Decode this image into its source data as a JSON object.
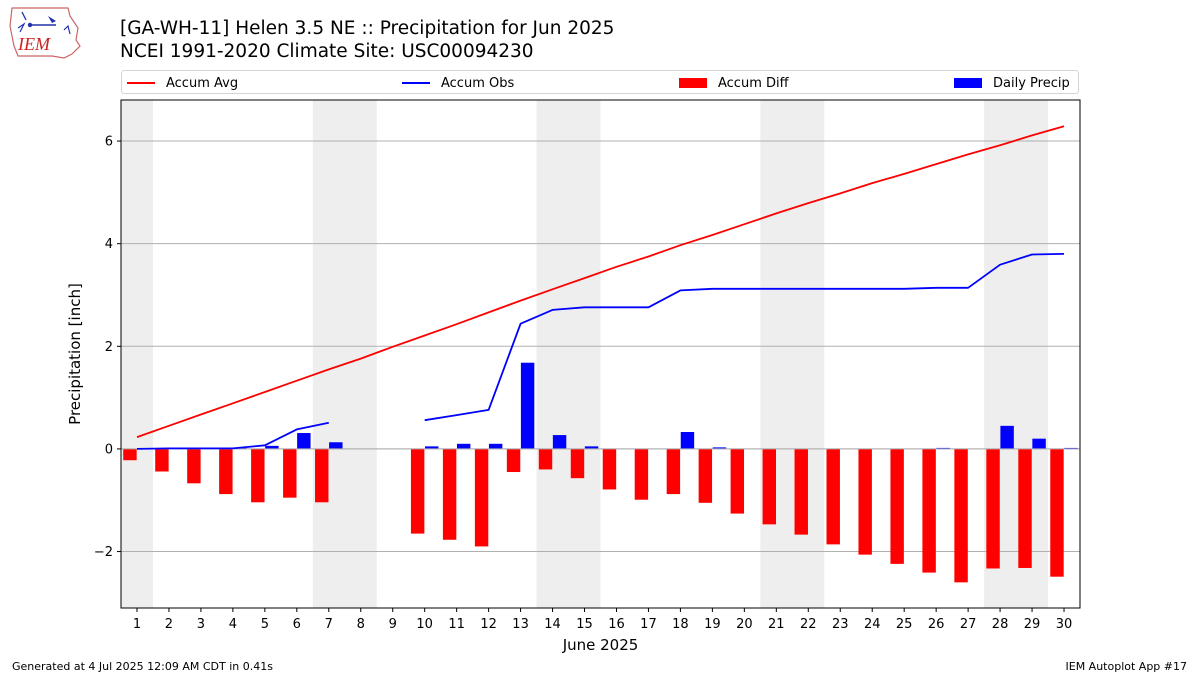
{
  "title_line1": "[GA-WH-11] Helen 3.5 NE :: Precipitation for Jun 2025",
  "title_line2": "NCEI 1991-2020 Climate Site: USC00094230",
  "logo_text": "IEM",
  "footer_left": "Generated at 4 Jul 2025 12:09 AM CDT in 0.41s",
  "footer_right": "IEM Autoplot App #17",
  "chart_data": {
    "type": "bar",
    "xlabel": "June 2025",
    "ylabel": "Precipitation [inch]",
    "xlim": [
      0.5,
      30.5
    ],
    "ylim": [
      -3.1,
      6.8
    ],
    "yticks": [
      -2,
      0,
      2,
      4,
      6
    ],
    "ytick_labels": [
      "−2",
      "0",
      "2",
      "4",
      "6"
    ],
    "xticks": [
      "1",
      "2",
      "3",
      "4",
      "5",
      "6",
      "7",
      "8",
      "9",
      "10",
      "11",
      "12",
      "13",
      "14",
      "15",
      "16",
      "17",
      "18",
      "19",
      "20",
      "21",
      "22",
      "23",
      "24",
      "25",
      "26",
      "27",
      "28",
      "29",
      "30"
    ],
    "grid": "horizontal",
    "legend_position": "top",
    "weekend_shading": [
      [
        0.5,
        1.5
      ],
      [
        6.5,
        8.5
      ],
      [
        13.5,
        15.5
      ],
      [
        20.5,
        22.5
      ],
      [
        27.5,
        29.5
      ]
    ],
    "shade_color": "#eeeeee",
    "series": [
      {
        "name": "Accum Avg",
        "kind": "line",
        "color": "#ff0000",
        "x": [
          1,
          2,
          3,
          4,
          5,
          6,
          7,
          8,
          9,
          10,
          11,
          12,
          13,
          14,
          15,
          16,
          17,
          18,
          19,
          20,
          21,
          22,
          23,
          24,
          25,
          26,
          27,
          28,
          29,
          30
        ],
        "values": [
          0.23,
          0.45,
          0.67,
          0.89,
          1.11,
          1.33,
          1.55,
          1.76,
          1.99,
          2.21,
          2.43,
          2.66,
          2.89,
          3.11,
          3.33,
          3.55,
          3.75,
          3.97,
          4.17,
          4.38,
          4.59,
          4.79,
          4.98,
          5.18,
          5.36,
          5.55,
          5.74,
          5.92,
          6.11,
          6.29
        ]
      },
      {
        "name": "Accum Obs",
        "kind": "line",
        "color": "#0000ff",
        "x": [
          1,
          2,
          3,
          4,
          5,
          6,
          7,
          8,
          9,
          10,
          11,
          12,
          13,
          14,
          15,
          16,
          17,
          18,
          19,
          20,
          21,
          22,
          23,
          24,
          25,
          26,
          27,
          28,
          29,
          30
        ],
        "values": [
          0.0,
          0.01,
          0.01,
          0.01,
          0.07,
          0.38,
          0.51,
          null,
          null,
          0.56,
          0.66,
          0.76,
          2.44,
          2.71,
          2.76,
          2.76,
          2.76,
          3.09,
          3.12,
          3.12,
          3.12,
          3.12,
          3.12,
          3.12,
          3.12,
          3.14,
          3.14,
          3.59,
          3.79,
          3.8
        ]
      },
      {
        "name": "Accum Diff",
        "kind": "bar",
        "color": "#ff0000",
        "offset": -0.22,
        "x": [
          1,
          2,
          3,
          4,
          5,
          6,
          7,
          10,
          11,
          12,
          13,
          14,
          15,
          16,
          17,
          18,
          19,
          20,
          21,
          22,
          23,
          24,
          25,
          26,
          27,
          28,
          29,
          30
        ],
        "values": [
          -0.22,
          -0.44,
          -0.67,
          -0.88,
          -1.04,
          -0.95,
          -1.04,
          -1.65,
          -1.77,
          -1.9,
          -0.45,
          -0.4,
          -0.57,
          -0.79,
          -0.99,
          -0.88,
          -1.05,
          -1.26,
          -1.47,
          -1.67,
          -1.86,
          -2.06,
          -2.24,
          -2.41,
          -2.6,
          -2.33,
          -2.32,
          -2.49
        ]
      },
      {
        "name": "Daily Precip",
        "kind": "bar",
        "color": "#0000ff",
        "offset": 0.22,
        "x": [
          2,
          3,
          4,
          5,
          6,
          7,
          10,
          11,
          12,
          13,
          14,
          15,
          18,
          19,
          26,
          28,
          29,
          30
        ],
        "values": [
          0.01,
          0.005,
          0.005,
          0.06,
          0.31,
          0.13,
          0.05,
          0.1,
          0.1,
          1.68,
          0.27,
          0.05,
          0.33,
          0.03,
          0.02,
          0.45,
          0.2,
          0.01
        ]
      }
    ]
  }
}
